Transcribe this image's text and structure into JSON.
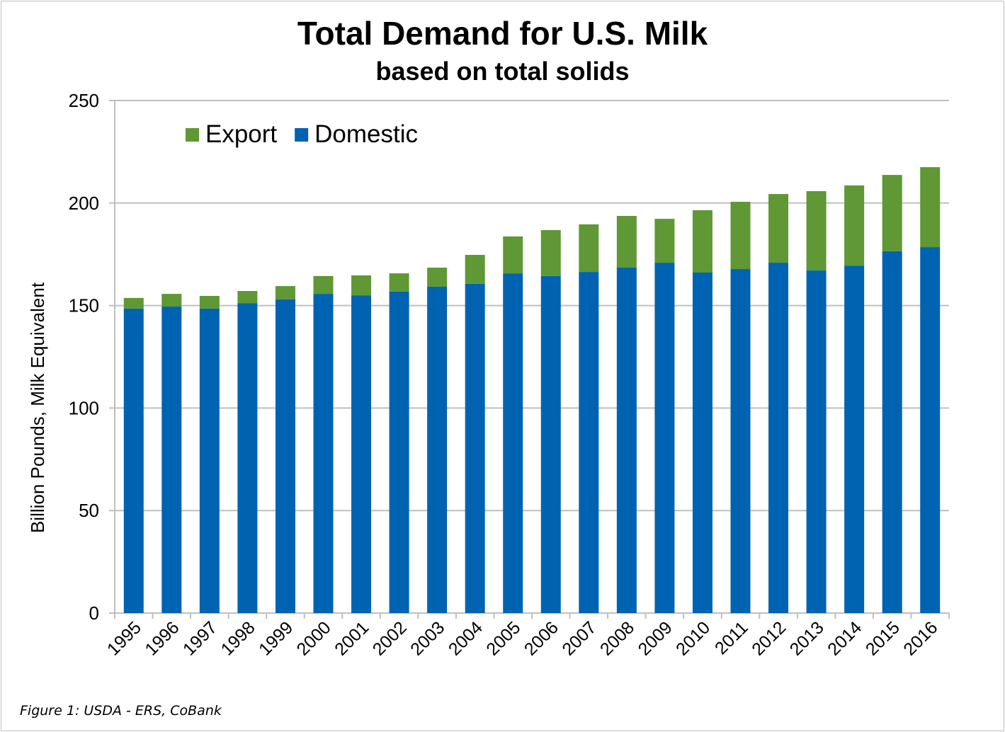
{
  "chart_data": {
    "type": "bar",
    "stacked": true,
    "title": "Total Demand for U.S. Milk",
    "subtitle": "based on total solids",
    "xlabel": "",
    "ylabel": "Billion Pounds, Milk Equivalent",
    "ylim": [
      0,
      250
    ],
    "yticks": [
      0,
      50,
      100,
      150,
      200,
      250
    ],
    "grid": true,
    "legend_placement": "top-left",
    "categories": [
      "1995",
      "1996",
      "1997",
      "1998",
      "1999",
      "2000",
      "2001",
      "2002",
      "2003",
      "2004",
      "2005",
      "2006",
      "2007",
      "2008",
      "2009",
      "2010",
      "2011",
      "2012",
      "2013",
      "2014",
      "2015",
      "2016"
    ],
    "series": [
      {
        "name": "Domestic",
        "color": "#0063B1",
        "values": [
          148.5,
          149.5,
          148.5,
          151.2,
          153.0,
          155.7,
          155.0,
          156.8,
          159.2,
          160.6,
          165.7,
          164.4,
          166.4,
          168.5,
          170.9,
          166.1,
          167.8,
          170.9,
          167.1,
          169.5,
          176.5,
          178.5
        ]
      },
      {
        "name": "Export",
        "color": "#5F9834",
        "values": [
          5.2,
          6.2,
          6.2,
          5.9,
          6.5,
          8.7,
          9.7,
          8.9,
          9.3,
          14.1,
          18.0,
          22.4,
          23.2,
          25.2,
          21.4,
          30.4,
          32.8,
          33.5,
          38.7,
          39.1,
          37.2,
          39.0
        ]
      }
    ],
    "legend_order": [
      "Export",
      "Domestic"
    ]
  },
  "source": "Figure 1: USDA - ERS, CoBank"
}
